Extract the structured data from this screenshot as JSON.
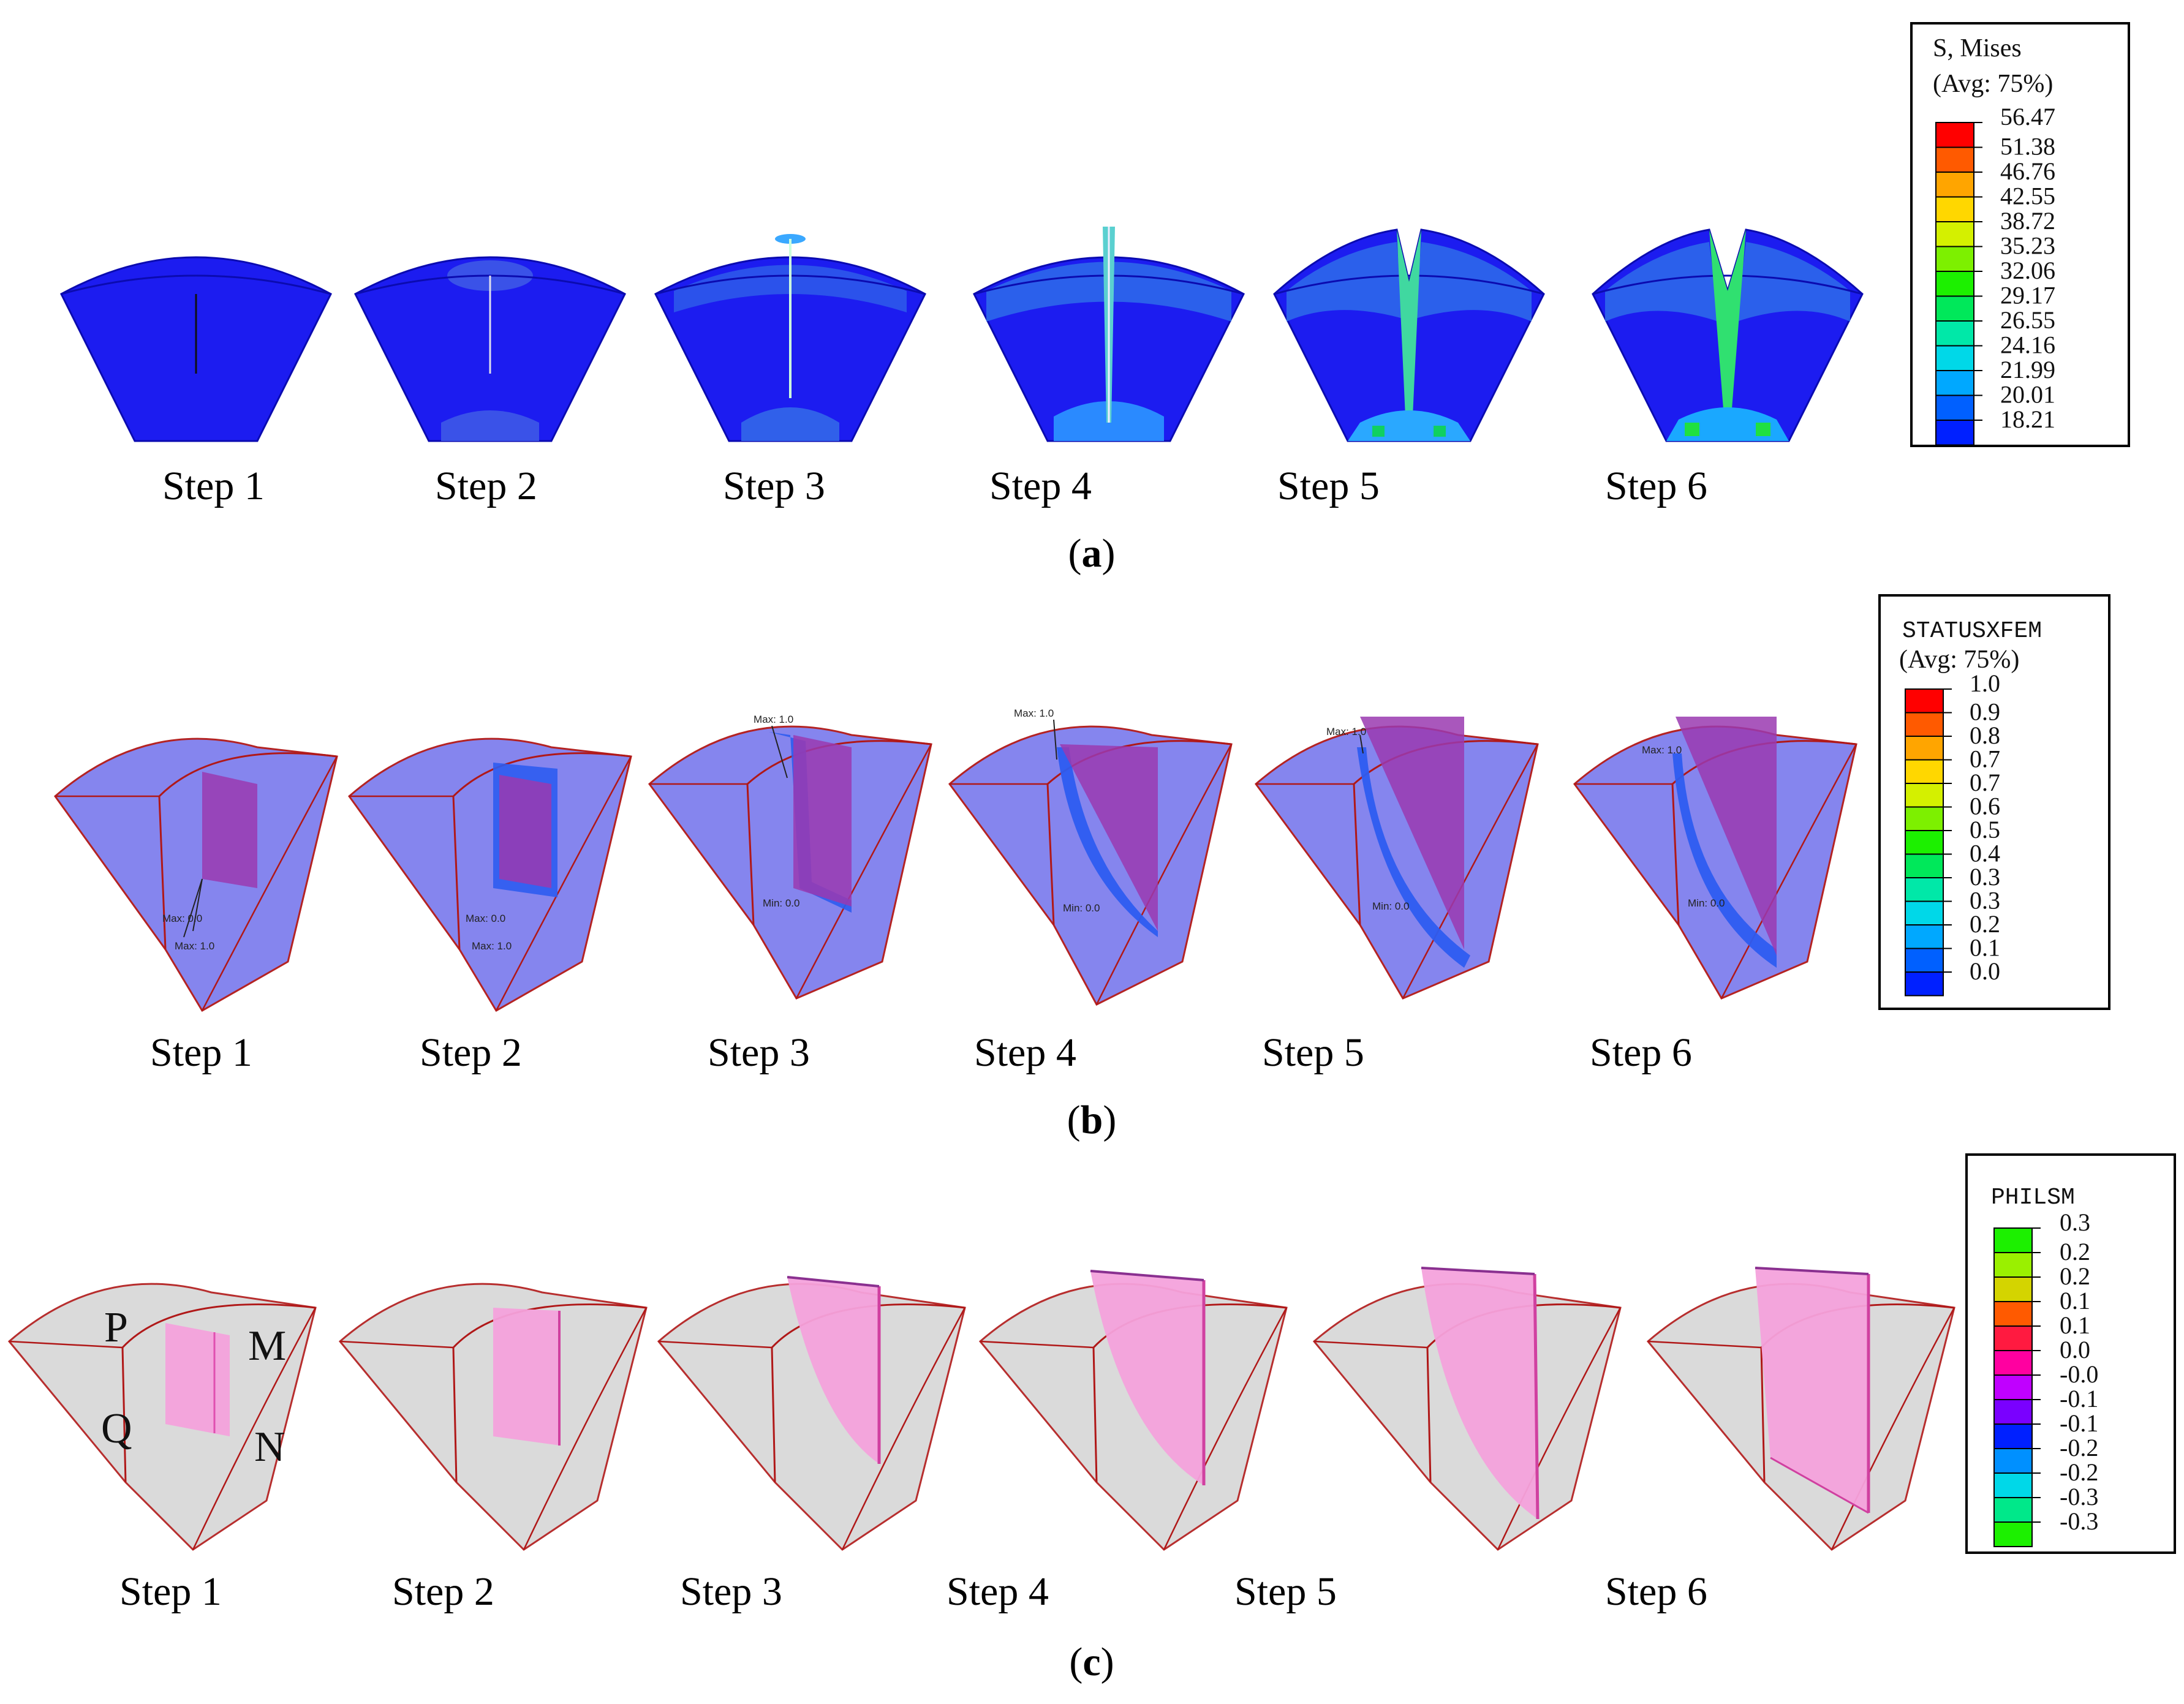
{
  "figure": {
    "panels": [
      {
        "id": "a",
        "caption_letter": "a",
        "steps": [
          "Step 1",
          "Step 2",
          "Step 3",
          "Step 4",
          "Step 5",
          "Step 6"
        ],
        "legend": {
          "title_line1": "S, Mises",
          "title_line2": "(Avg: 75%)",
          "values": [
            "56.47",
            "51.38",
            "46.76",
            "42.55",
            "38.72",
            "35.23",
            "32.06",
            "29.17",
            "26.55",
            "24.16",
            "21.99",
            "20.01",
            "18.21"
          ],
          "colors": [
            "#ff0000",
            "#ff5a00",
            "#ffa500",
            "#ffd700",
            "#d4f000",
            "#7df000",
            "#1cf000",
            "#00e85a",
            "#00e8a8",
            "#00d8e8",
            "#00a8ff",
            "#0060ff",
            "#0020ff"
          ]
        }
      },
      {
        "id": "b",
        "caption_letter": "b",
        "steps": [
          "Step 1",
          "Step 2",
          "Step 3",
          "Step 4",
          "Step 5",
          "Step 6"
        ],
        "legend": {
          "title_line1": "STATUSXFEM",
          "title_line2": "(Avg: 75%)",
          "values": [
            "1.0",
            "0.9",
            "0.8",
            "0.7",
            "0.7",
            "0.6",
            "0.5",
            "0.4",
            "0.3",
            "0.3",
            "0.2",
            "0.1",
            "0.0"
          ],
          "colors": [
            "#ff0000",
            "#ff5a00",
            "#ffa500",
            "#ffd700",
            "#d4f000",
            "#7df000",
            "#1cf000",
            "#00e85a",
            "#00e8a8",
            "#00d8e8",
            "#00a8ff",
            "#0060ff",
            "#0020ff"
          ]
        },
        "annotations": {
          "step1": [
            "Max: 0.0",
            "Max: 1.0"
          ],
          "step2": [
            "Max: 0.0",
            "Max: 1.0"
          ],
          "step3": [
            "Max: 1.0",
            "Min: 0.0"
          ],
          "step4": [
            "Max: 1.0",
            "Min: 0.0"
          ],
          "step5": [
            "Max: 1.0",
            "Min: 0.0"
          ],
          "step6": [
            "Max: 1.0",
            "Min: 0.0"
          ]
        }
      },
      {
        "id": "c",
        "caption_letter": "c",
        "steps": [
          "Step 1",
          "Step 2",
          "Step 3",
          "Step 4",
          "Step 5",
          "Step 6"
        ],
        "legend": {
          "title_line1": "PHILSM",
          "values": [
            "0.3",
            "0.2",
            "0.2",
            "0.1",
            "0.1",
            "0.0",
            "-0.0",
            "-0.1",
            "-0.1",
            "-0.2",
            "-0.2",
            "-0.3",
            "-0.3"
          ],
          "colors": [
            "#1cf000",
            "#9af000",
            "#d4d400",
            "#ff5a00",
            "#ff1a40",
            "#ff00a0",
            "#c000ff",
            "#7a00ff",
            "#0020ff",
            "#0090ff",
            "#00d8e8",
            "#00e88a",
            "#1cf000"
          ]
        },
        "face_labels": [
          "P",
          "M",
          "Q",
          "N"
        ]
      }
    ]
  }
}
